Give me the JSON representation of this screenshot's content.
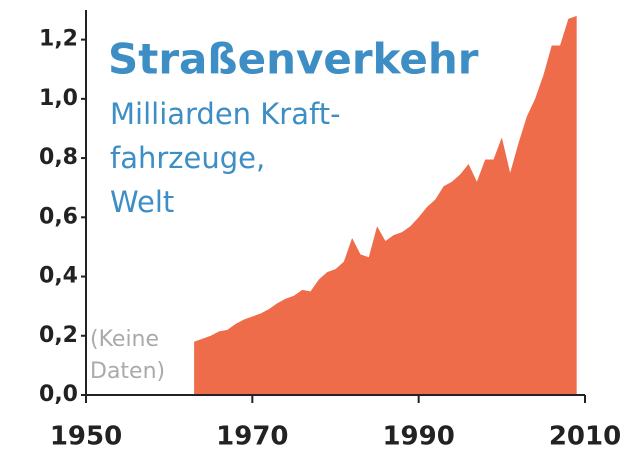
{
  "chart_data": {
    "type": "area",
    "title": "Straßenverkehr",
    "subtitle": [
      "Milliarden Kraft-",
      "fahrzeuge,",
      "Welt"
    ],
    "annotation": [
      "(Keine",
      "Daten)"
    ],
    "x": [
      1963,
      1964,
      1965,
      1966,
      1967,
      1968,
      1969,
      1970,
      1971,
      1972,
      1973,
      1974,
      1975,
      1976,
      1977,
      1978,
      1979,
      1980,
      1981,
      1982,
      1983,
      1984,
      1985,
      1986,
      1987,
      1988,
      1989,
      1990,
      1991,
      1992,
      1993,
      1994,
      1995,
      1996,
      1997,
      1998,
      1999,
      2000,
      2001,
      2002,
      2003,
      2004,
      2005,
      2006,
      2007,
      2008,
      2009
    ],
    "values": [
      0.18,
      0.19,
      0.2,
      0.215,
      0.22,
      0.24,
      0.255,
      0.265,
      0.275,
      0.29,
      0.31,
      0.325,
      0.335,
      0.355,
      0.35,
      0.39,
      0.415,
      0.425,
      0.45,
      0.53,
      0.475,
      0.465,
      0.57,
      0.52,
      0.54,
      0.55,
      0.57,
      0.6,
      0.635,
      0.66,
      0.705,
      0.72,
      0.745,
      0.78,
      0.72,
      0.795,
      0.795,
      0.87,
      0.75,
      0.85,
      0.94,
      1.0,
      1.08,
      1.18,
      1.18,
      1.27,
      1.28
    ],
    "color": "#ee6c4a",
    "xlim": [
      1950,
      2010
    ],
    "xticks": [
      1950,
      1970,
      1990,
      2010
    ],
    "ylim": [
      0,
      1.3
    ],
    "yticks": [
      {
        "value": 0,
        "label": "0,0"
      },
      {
        "value": 0.2,
        "label": "0,2"
      },
      {
        "value": 0.4,
        "label": "0,4"
      },
      {
        "value": 0.6,
        "label": "0,6"
      },
      {
        "value": 0.8,
        "label": "0,8"
      },
      {
        "value": 1.0,
        "label": "1,0"
      },
      {
        "value": 1.2,
        "label": "1,2"
      }
    ]
  }
}
